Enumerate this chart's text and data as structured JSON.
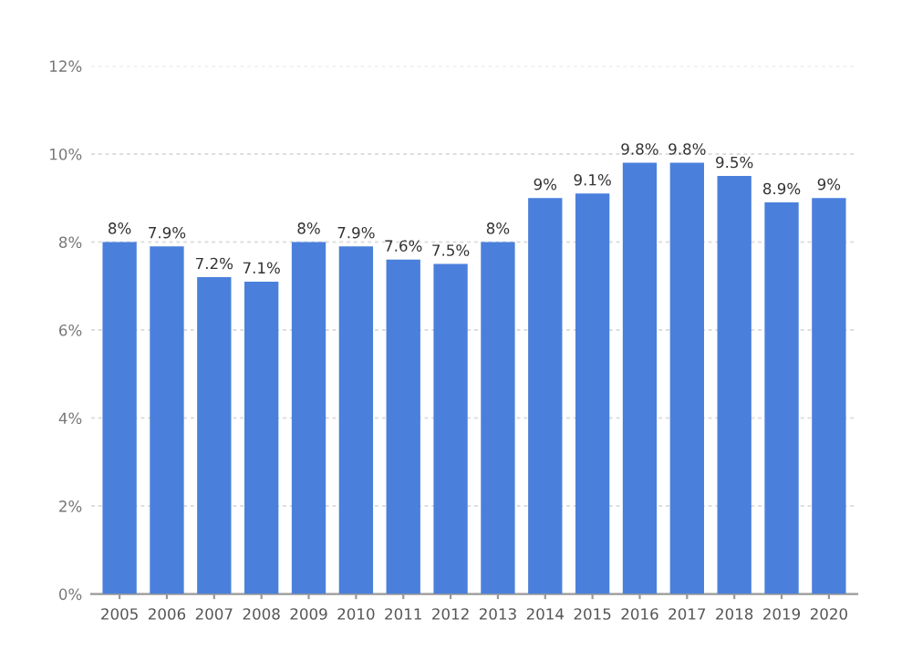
{
  "chart_data": {
    "type": "bar",
    "categories": [
      "2005",
      "2006",
      "2007",
      "2008",
      "2009",
      "2010",
      "2011",
      "2012",
      "2013",
      "2014",
      "2015",
      "2016",
      "2017",
      "2018",
      "2019",
      "2020"
    ],
    "values": [
      8,
      7.9,
      7.2,
      7.1,
      8,
      7.9,
      7.6,
      7.5,
      8,
      9,
      9.1,
      9.8,
      9.8,
      9.5,
      8.9,
      9
    ],
    "value_labels": [
      "8%",
      "7.9%",
      "7.2%",
      "7.1%",
      "8%",
      "7.9%",
      "7.6%",
      "7.5%",
      "8%",
      "9%",
      "9.1%",
      "9.8%",
      "9.8%",
      "9.5%",
      "8.9%",
      "9%"
    ],
    "color": "#4a80dc",
    "ylim": [
      0,
      12
    ],
    "yticks": [
      {
        "value": 0,
        "label": "0%"
      },
      {
        "value": 2,
        "label": "2%"
      },
      {
        "value": 4,
        "label": "4%"
      },
      {
        "value": 6,
        "label": "6%"
      },
      {
        "value": 8,
        "label": "8%"
      },
      {
        "value": 10,
        "label": "10%"
      },
      {
        "value": 12,
        "label": "12%"
      }
    ],
    "grid": "y"
  }
}
